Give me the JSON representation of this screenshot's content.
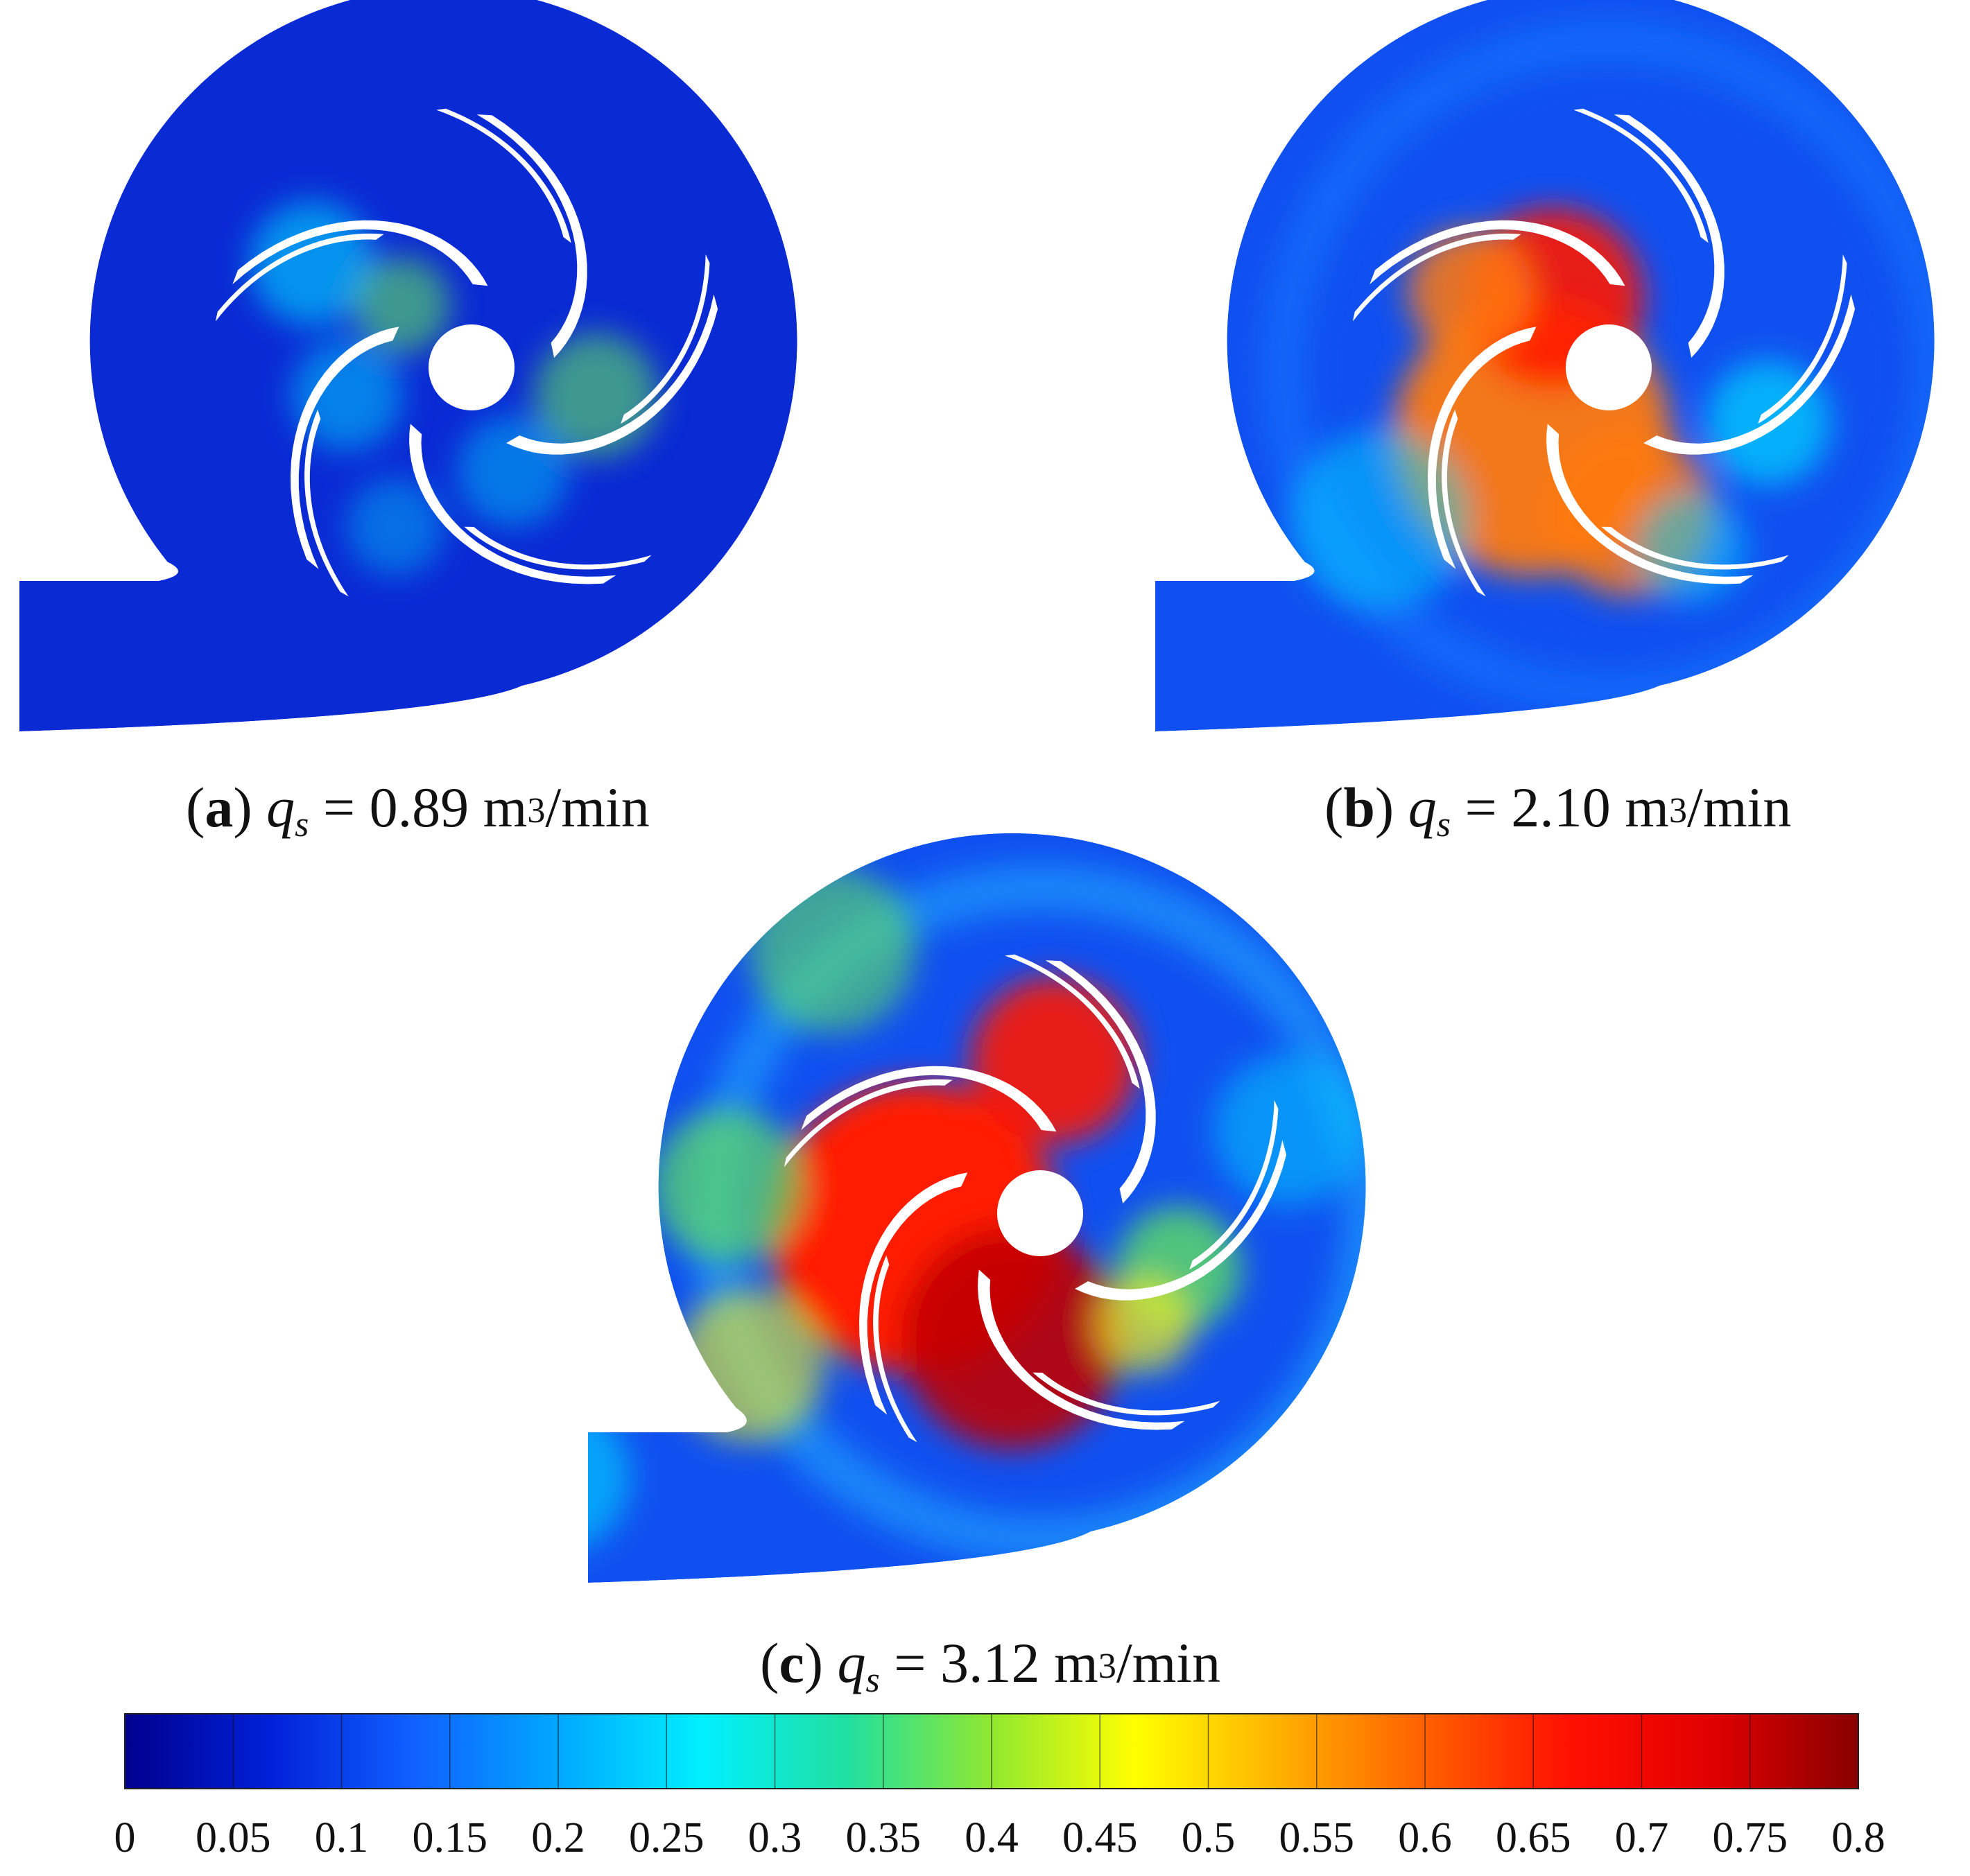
{
  "panels": [
    {
      "id": "a",
      "letter": "a",
      "variable": "q",
      "subscript": "s",
      "equals": "=",
      "value": "0.89",
      "unit_base": "m",
      "unit_exp": "3",
      "unit_tail": "/min",
      "field_level": 0.12
    },
    {
      "id": "b",
      "letter": "b",
      "variable": "q",
      "subscript": "s",
      "equals": "=",
      "value": "2.10",
      "unit_base": "m",
      "unit_exp": "3",
      "unit_tail": "/min",
      "field_level": 0.38
    },
    {
      "id": "c",
      "letter": "c",
      "variable": "q",
      "subscript": "s",
      "equals": "=",
      "value": "3.12",
      "unit_base": "m",
      "unit_exp": "3",
      "unit_tail": "/min",
      "field_level": 0.55
    }
  ],
  "colorbar": {
    "ticks": [
      "0",
      "0.05",
      "0.1",
      "0.15",
      "0.2",
      "0.25",
      "0.3",
      "0.35",
      "0.4",
      "0.45",
      "0.5",
      "0.55",
      "0.6",
      "0.65",
      "0.7",
      "0.75",
      "0.8"
    ],
    "min": 0,
    "max": 0.8,
    "stops": [
      "#00008c",
      "#0020d8",
      "#1060ff",
      "#00a8ff",
      "#00f0ff",
      "#20e0a0",
      "#90e830",
      "#ffff00",
      "#ffb000",
      "#ff6000",
      "#ff1000",
      "#e00000",
      "#880000"
    ]
  },
  "colors": {
    "deep_blue": "#0a2ad4",
    "mid_blue": "#1050f0",
    "cyan": "#00d8ff",
    "green": "#60e060",
    "yellow": "#f0f020",
    "orange": "#ff7a10",
    "red": "#ff1a00",
    "dark_red": "#c00000",
    "hole": "#ffffff"
  }
}
